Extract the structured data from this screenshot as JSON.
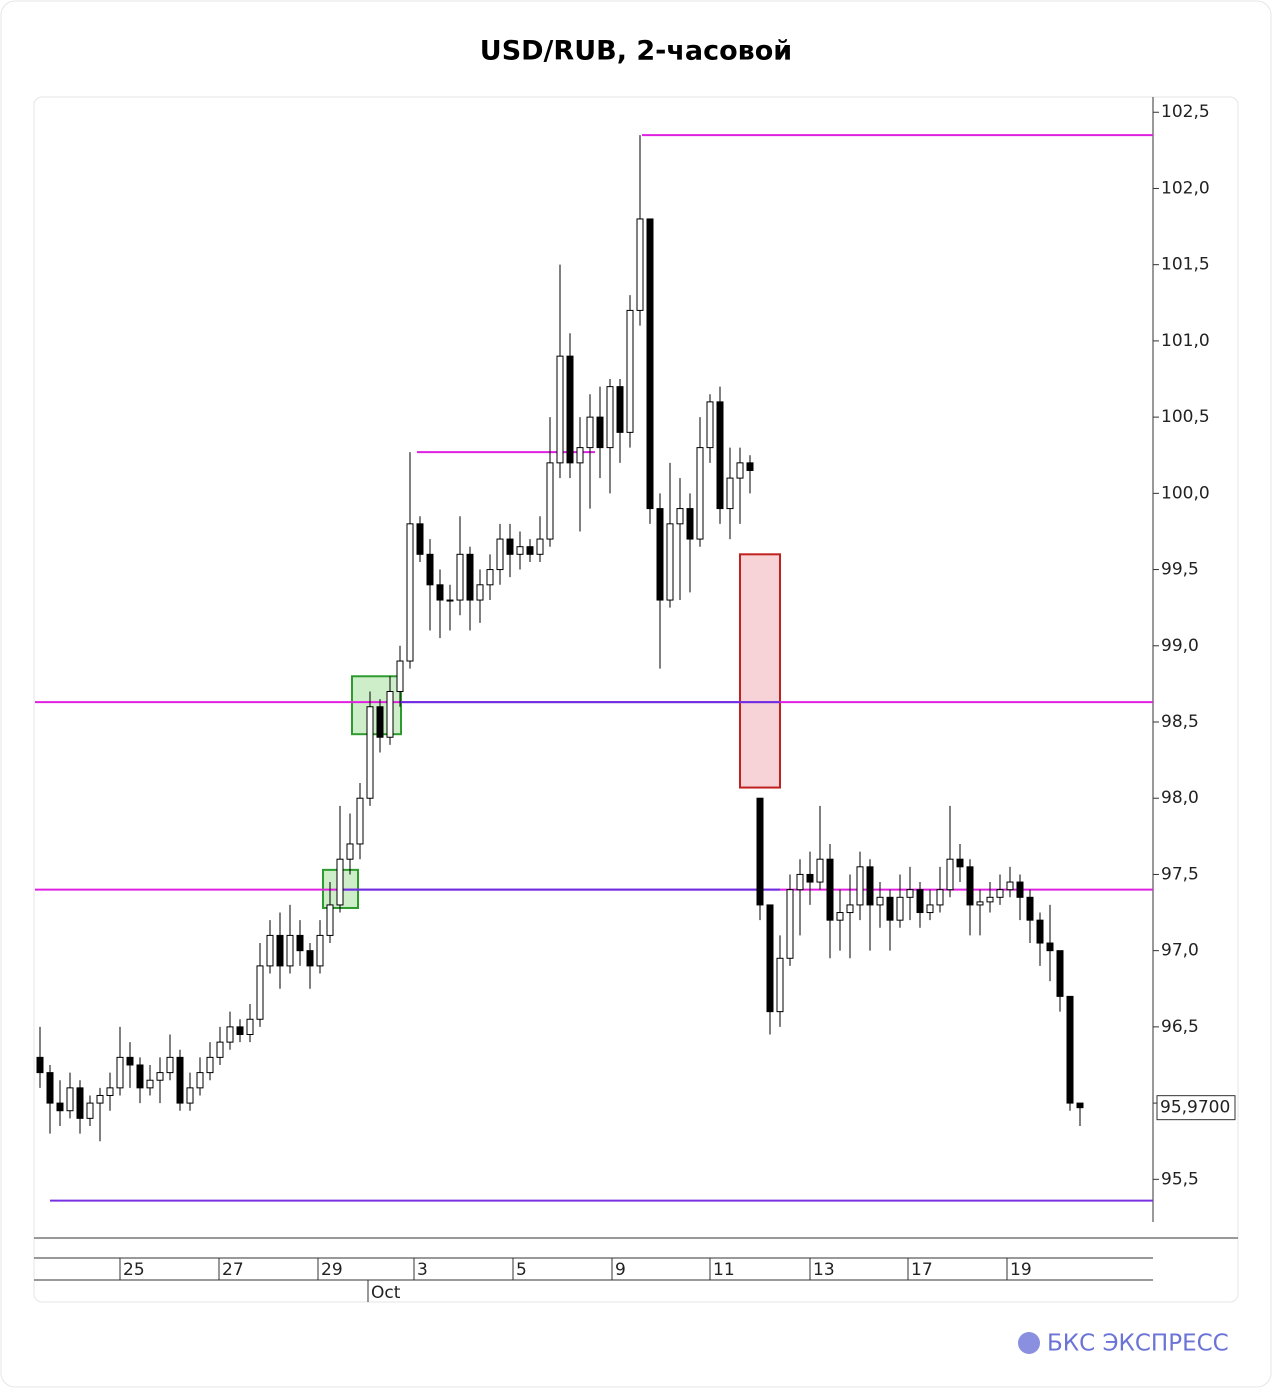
{
  "chart_data": {
    "type": "candlestick",
    "title": "USD/RUB, 2-часовой",
    "watermark": "БКС ЭКСПРЕСС",
    "ylim": [
      95.22,
      102.6
    ],
    "xlim": [
      -0.5,
      111.3
    ],
    "yticks": [
      {
        "value": 95.5,
        "label": "95,5"
      },
      {
        "value": 96,
        "label": "96,0"
      },
      {
        "value": 96.5,
        "label": "96,5"
      },
      {
        "value": 97,
        "label": "97,0"
      },
      {
        "value": 97.5,
        "label": "97,5"
      },
      {
        "value": 98,
        "label": "98,0"
      },
      {
        "value": 98.5,
        "label": "98,5"
      },
      {
        "value": 99,
        "label": "99,0"
      },
      {
        "value": 99.5,
        "label": "99,5"
      },
      {
        "value": 100,
        "label": "100,0"
      },
      {
        "value": 100.5,
        "label": "100,5"
      },
      {
        "value": 101,
        "label": "101,0"
      },
      {
        "value": 101.5,
        "label": "101,5"
      },
      {
        "value": 102,
        "label": "102,0"
      },
      {
        "value": 102.5,
        "label": "102,5"
      }
    ],
    "xticks": [
      {
        "value": 8,
        "label": "25"
      },
      {
        "value": 17.9,
        "label": "27"
      },
      {
        "value": 27.8,
        "label": "29"
      },
      {
        "value": 37.4,
        "label": "3"
      },
      {
        "value": 47.3,
        "label": "5"
      },
      {
        "value": 57.2,
        "label": "9"
      },
      {
        "value": 67,
        "label": "11"
      },
      {
        "value": 77,
        "label": "13"
      },
      {
        "value": 86.8,
        "label": "17"
      },
      {
        "value": 96.7,
        "label": "19"
      }
    ],
    "month_ticks": [
      {
        "value": 32.8,
        "label": "Oct"
      }
    ],
    "last_price": {
      "value": 95.97,
      "label": "95,9700"
    },
    "up_color": "#ffffff",
    "down_color": "#000000",
    "candles": [
      [
        96.3,
        96.5,
        96.1,
        96.2
      ],
      [
        96.2,
        96.25,
        95.8,
        96.0
      ],
      [
        96.0,
        96.15,
        95.85,
        95.95
      ],
      [
        95.95,
        96.2,
        95.9,
        96.1
      ],
      [
        96.1,
        96.15,
        95.8,
        95.9
      ],
      [
        95.9,
        96.05,
        95.85,
        96.0
      ],
      [
        96.0,
        96.1,
        95.75,
        96.05
      ],
      [
        96.05,
        96.2,
        95.95,
        96.1
      ],
      [
        96.1,
        96.5,
        96.05,
        96.3
      ],
      [
        96.3,
        96.4,
        96.1,
        96.25
      ],
      [
        96.25,
        96.3,
        96.0,
        96.1
      ],
      [
        96.1,
        96.25,
        96.05,
        96.15
      ],
      [
        96.15,
        96.3,
        96.0,
        96.2
      ],
      [
        96.2,
        96.45,
        96.15,
        96.3
      ],
      [
        96.3,
        96.35,
        95.95,
        96.0
      ],
      [
        96.0,
        96.2,
        95.95,
        96.1
      ],
      [
        96.1,
        96.3,
        96.05,
        96.2
      ],
      [
        96.2,
        96.4,
        96.15,
        96.3
      ],
      [
        96.3,
        96.5,
        96.25,
        96.4
      ],
      [
        96.4,
        96.6,
        96.35,
        96.5
      ],
      [
        96.5,
        96.55,
        96.4,
        96.45
      ],
      [
        96.45,
        96.65,
        96.4,
        96.55
      ],
      [
        96.55,
        97.05,
        96.5,
        96.9
      ],
      [
        96.9,
        97.2,
        96.85,
        97.1
      ],
      [
        97.1,
        97.25,
        96.75,
        96.9
      ],
      [
        96.9,
        97.3,
        96.85,
        97.1
      ],
      [
        97.1,
        97.2,
        96.9,
        97.0
      ],
      [
        97.0,
        97.05,
        96.75,
        96.9
      ],
      [
        96.9,
        97.2,
        96.85,
        97.1
      ],
      [
        97.1,
        97.45,
        97.05,
        97.3
      ],
      [
        97.3,
        97.95,
        97.25,
        97.6
      ],
      [
        97.6,
        97.9,
        97.5,
        97.7
      ],
      [
        97.7,
        98.1,
        97.6,
        98.0
      ],
      [
        98.0,
        98.7,
        97.95,
        98.6
      ],
      [
        98.6,
        98.65,
        98.3,
        98.4
      ],
      [
        98.4,
        98.8,
        98.35,
        98.7
      ],
      [
        98.7,
        99.0,
        98.6,
        98.9
      ],
      [
        98.9,
        100.27,
        98.85,
        99.8
      ],
      [
        99.8,
        99.85,
        99.55,
        99.6
      ],
      [
        99.6,
        99.7,
        99.1,
        99.4
      ],
      [
        99.4,
        99.5,
        99.05,
        99.3
      ],
      [
        99.3,
        99.4,
        99.1,
        99.3
      ],
      [
        99.3,
        99.85,
        99.2,
        99.6
      ],
      [
        99.6,
        99.65,
        99.1,
        99.3
      ],
      [
        99.3,
        99.5,
        99.15,
        99.4
      ],
      [
        99.4,
        99.6,
        99.3,
        99.5
      ],
      [
        99.5,
        99.8,
        99.4,
        99.7
      ],
      [
        99.7,
        99.8,
        99.45,
        99.6
      ],
      [
        99.6,
        99.75,
        99.5,
        99.65
      ],
      [
        99.65,
        99.7,
        99.55,
        99.6
      ],
      [
        99.6,
        99.85,
        99.55,
        99.7
      ],
      [
        99.7,
        100.5,
        99.65,
        100.2
      ],
      [
        100.2,
        101.5,
        100.1,
        100.9
      ],
      [
        100.9,
        101.05,
        100.1,
        100.2
      ],
      [
        100.2,
        100.5,
        99.75,
        100.3
      ],
      [
        100.3,
        100.65,
        99.9,
        100.5
      ],
      [
        100.5,
        100.7,
        100.1,
        100.3
      ],
      [
        100.3,
        100.75,
        100.0,
        100.7
      ],
      [
        100.7,
        100.75,
        100.2,
        100.4
      ],
      [
        100.4,
        101.3,
        100.3,
        101.2
      ],
      [
        101.2,
        102.35,
        101.1,
        101.8
      ],
      [
        101.8,
        101.8,
        99.8,
        99.9
      ],
      [
        99.9,
        100.0,
        98.85,
        99.3
      ],
      [
        99.3,
        100.2,
        99.25,
        99.8
      ],
      [
        99.8,
        100.1,
        99.3,
        99.9
      ],
      [
        99.9,
        100.0,
        99.35,
        99.7
      ],
      [
        99.7,
        100.5,
        99.65,
        100.3
      ],
      [
        100.3,
        100.65,
        100.2,
        100.6
      ],
      [
        100.6,
        100.7,
        99.8,
        99.9
      ],
      [
        99.9,
        100.3,
        99.7,
        100.1
      ],
      [
        100.1,
        100.3,
        99.8,
        100.2
      ],
      [
        100.2,
        100.25,
        100.0,
        100.15
      ],
      [
        98.0,
        98.0,
        97.2,
        97.3
      ],
      [
        97.3,
        97.3,
        96.45,
        96.6
      ],
      [
        96.6,
        97.1,
        96.5,
        96.95
      ],
      [
        96.95,
        97.5,
        96.9,
        97.4
      ],
      [
        97.4,
        97.6,
        97.1,
        97.5
      ],
      [
        97.5,
        97.65,
        97.3,
        97.45
      ],
      [
        97.45,
        97.95,
        97.4,
        97.6
      ],
      [
        97.6,
        97.7,
        96.95,
        97.2
      ],
      [
        97.2,
        97.4,
        97.0,
        97.25
      ],
      [
        97.25,
        97.5,
        96.95,
        97.3
      ],
      [
        97.3,
        97.65,
        97.2,
        97.55
      ],
      [
        97.55,
        97.6,
        97.0,
        97.3
      ],
      [
        97.3,
        97.45,
        97.15,
        97.35
      ],
      [
        97.35,
        97.4,
        97.0,
        97.2
      ],
      [
        97.2,
        97.5,
        97.15,
        97.35
      ],
      [
        97.35,
        97.55,
        97.2,
        97.4
      ],
      [
        97.4,
        97.45,
        97.15,
        97.25
      ],
      [
        97.25,
        97.4,
        97.2,
        97.3
      ],
      [
        97.3,
        97.55,
        97.25,
        97.4
      ],
      [
        97.4,
        97.95,
        97.35,
        97.6
      ],
      [
        97.6,
        97.7,
        97.45,
        97.55
      ],
      [
        97.55,
        97.6,
        97.1,
        97.3
      ],
      [
        97.3,
        97.4,
        97.1,
        97.32
      ],
      [
        97.32,
        97.45,
        97.25,
        97.35
      ],
      [
        97.35,
        97.5,
        97.3,
        97.4
      ],
      [
        97.4,
        97.55,
        97.35,
        97.45
      ],
      [
        97.45,
        97.5,
        97.2,
        97.35
      ],
      [
        97.35,
        97.4,
        97.05,
        97.2
      ],
      [
        97.2,
        97.25,
        96.9,
        97.05
      ],
      [
        97.05,
        97.3,
        96.8,
        97.0
      ],
      [
        97.0,
        97.0,
        96.6,
        96.7
      ],
      [
        96.7,
        96.7,
        95.95,
        96.0
      ],
      [
        96.0,
        96.0,
        95.85,
        95.97
      ]
    ],
    "levels": [
      {
        "value": 102.35,
        "from": 60.2,
        "to": 111.3,
        "color": "#e020e0"
      },
      {
        "value": 100.27,
        "from": 37.7,
        "to": 55.5,
        "color": "#e020e0"
      },
      {
        "value": 98.63,
        "from": -0.5,
        "to": 111.3,
        "color": "#e020e0"
      },
      {
        "value": 98.63,
        "from": 36,
        "to": 74,
        "color": "#6a30e0"
      },
      {
        "value": 97.4,
        "from": -0.5,
        "to": 111.3,
        "color": "#e020e0"
      },
      {
        "value": 97.4,
        "from": 30,
        "to": 74,
        "color": "#6a30e0"
      },
      {
        "value": 95.36,
        "from": 1,
        "to": 111.3,
        "color": "#7a30e0"
      }
    ],
    "zones": [
      {
        "x": [
          31.2,
          36.1
        ],
        "y": [
          98.42,
          98.8
        ],
        "color": "#2e9b2e",
        "fill": "#cdeec9"
      },
      {
        "x": [
          28.3,
          31.8
        ],
        "y": [
          97.28,
          97.53
        ],
        "color": "#2e9b2e",
        "fill": "#cdeec9"
      },
      {
        "x": [
          70,
          74
        ],
        "y": [
          98.07,
          99.6
        ],
        "color": "#c02020",
        "fill": "#f7d3d8"
      }
    ]
  }
}
